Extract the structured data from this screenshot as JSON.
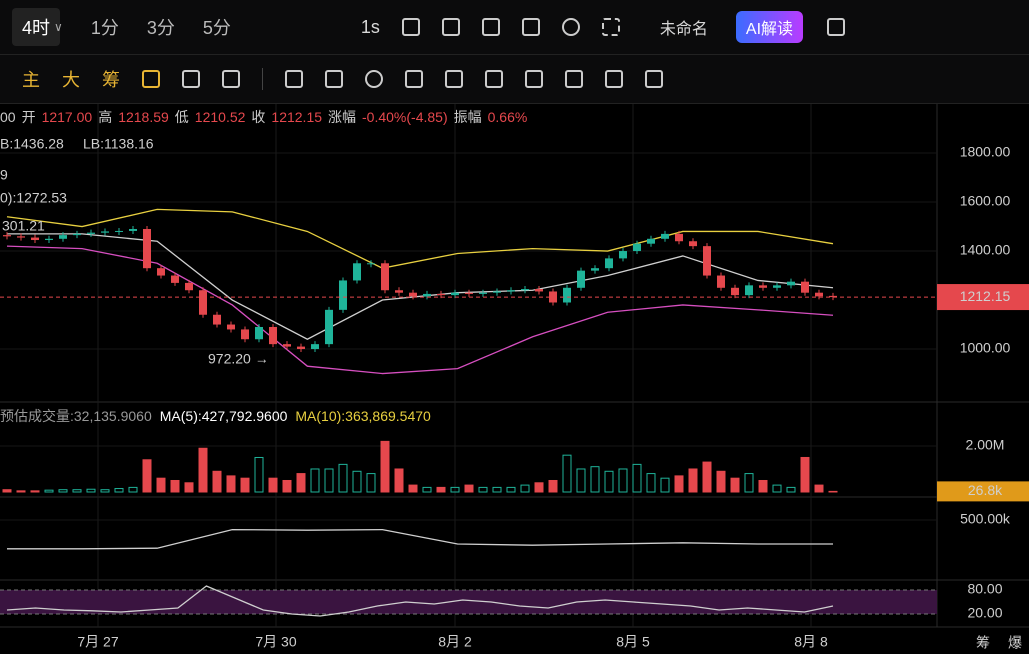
{
  "topbar": {
    "interval": "4时",
    "intervals": [
      "1分",
      "3分",
      "5分"
    ],
    "speed": "1s",
    "layout_name": "未命名",
    "ai": "AI解读"
  },
  "toolbar": [
    "主",
    "大",
    "筹"
  ],
  "info": {
    "time": "00",
    "open_label": "开",
    "open": "1217.00",
    "high_label": "高",
    "high": "1218.59",
    "low_label": "低",
    "low": "1210.52",
    "close_label": "收",
    "close": "1212.15",
    "change_label": "涨幅",
    "change": "-0.40%(-4.85)",
    "amp_label": "振幅",
    "amp": "0.66%"
  },
  "legend": [
    "B:1436.28",
    "LB:1138.16",
    "9",
    "0):1272.53",
    "301.21"
  ],
  "x_labels": [
    "7月 27",
    "7月 30",
    "8月 2",
    "8月 5",
    "8月 8"
  ],
  "side_labels": [
    "筹",
    "爆"
  ],
  "chart_data": {
    "type": "candlestick",
    "opens": [
      1465,
      1460,
      1455,
      1445,
      1450,
      1465,
      1470,
      1475,
      1480,
      1482,
      1490,
      1330,
      1300,
      1270,
      1240,
      1140,
      1100,
      1080,
      1040,
      1090,
      1020,
      1010,
      1000,
      1020,
      1160,
      1280,
      1350,
      1350,
      1240,
      1230,
      1215,
      1225,
      1220,
      1230,
      1225,
      1230,
      1235,
      1240,
      1245,
      1235,
      1190,
      1250,
      1320,
      1330,
      1370,
      1400,
      1430,
      1450,
      1470,
      1440,
      1420,
      1300,
      1250,
      1220,
      1260,
      1250,
      1260,
      1275,
      1230,
      1217
    ],
    "closes": [
      1460,
      1455,
      1445,
      1450,
      1465,
      1470,
      1475,
      1480,
      1482,
      1490,
      1330,
      1300,
      1270,
      1240,
      1140,
      1100,
      1080,
      1040,
      1090,
      1020,
      1010,
      1000,
      1020,
      1160,
      1280,
      1350,
      1350,
      1240,
      1230,
      1215,
      1225,
      1220,
      1230,
      1225,
      1230,
      1235,
      1240,
      1245,
      1235,
      1190,
      1250,
      1320,
      1330,
      1370,
      1400,
      1430,
      1450,
      1470,
      1440,
      1420,
      1300,
      1250,
      1220,
      1260,
      1250,
      1260,
      1275,
      1230,
      1215,
      1212.15
    ],
    "boll_upper": [
      1540,
      1500,
      1570,
      1560,
      1480,
      1330,
      1390,
      1410,
      1400,
      1480,
      1480,
      1430
    ],
    "boll_lower": [
      1420,
      1410,
      1350,
      1180,
      930,
      900,
      920,
      1050,
      1150,
      1180,
      1160,
      1138
    ],
    "ma": [
      1470,
      1470,
      1440,
      1200,
      1040,
      1200,
      1230,
      1240,
      1300,
      1380,
      1280,
      1250
    ],
    "ylim": [
      792,
      1992
    ],
    "yticks": [
      {
        "value": 1000,
        "label": "1000.00"
      },
      {
        "value": 1400,
        "label": "1400.00"
      },
      {
        "value": 1600,
        "label": "1600.00"
      },
      {
        "value": 1800,
        "label": "1800.00"
      }
    ],
    "last_price": 1212.15,
    "annotation": "972.20 →",
    "annotation_value": 972.2,
    "volume": {
      "title": "预估成交量:32,135.9060",
      "ma5": "MA(5):427,792.9600",
      "ma10": "MA(10):363,869.5470",
      "values": [
        100000,
        50000,
        50000,
        80000,
        100000,
        100000,
        120000,
        100000,
        150000,
        200000,
        1400000,
        600000,
        500000,
        400000,
        1900000,
        900000,
        700000,
        600000,
        1500000,
        600000,
        500000,
        800000,
        1000000,
        1000000,
        1200000,
        900000,
        800000,
        2200000,
        1000000,
        300000,
        200000,
        200000,
        200000,
        300000,
        200000,
        200000,
        200000,
        300000,
        400000,
        500000,
        1600000,
        1000000,
        1100000,
        900000,
        1000000,
        1200000,
        800000,
        600000,
        700000,
        1000000,
        1300000,
        900000,
        600000,
        800000,
        500000,
        300000,
        200000,
        1500000,
        300000,
        26800
      ],
      "ylim": [
        0,
        3780000
      ],
      "yticks": [
        {
          "value": 2000000,
          "label": "2.00M"
        }
      ],
      "last_label": "26.8k"
    },
    "pane3": {
      "values": [
        260000,
        260000,
        265000,
        420000,
        415000,
        420000,
        300000,
        290000,
        300000,
        310000,
        300000,
        300000
      ],
      "ylim": [
        0,
        666700
      ],
      "yticks": [
        {
          "value": 500000,
          "label": "500.00k"
        }
      ]
    },
    "pane4": {
      "values": [
        30,
        35,
        30,
        28,
        25,
        30,
        35,
        90,
        60,
        30,
        20,
        15,
        25,
        40,
        50,
        45,
        55,
        50,
        40,
        35,
        50,
        55,
        50,
        45,
        40,
        30,
        35,
        30,
        25,
        40
      ],
      "ylim": [
        0,
        100
      ],
      "yticks": [
        {
          "value": 80,
          "label": "80.00"
        },
        {
          "value": 20,
          "label": "20.00"
        }
      ]
    }
  }
}
